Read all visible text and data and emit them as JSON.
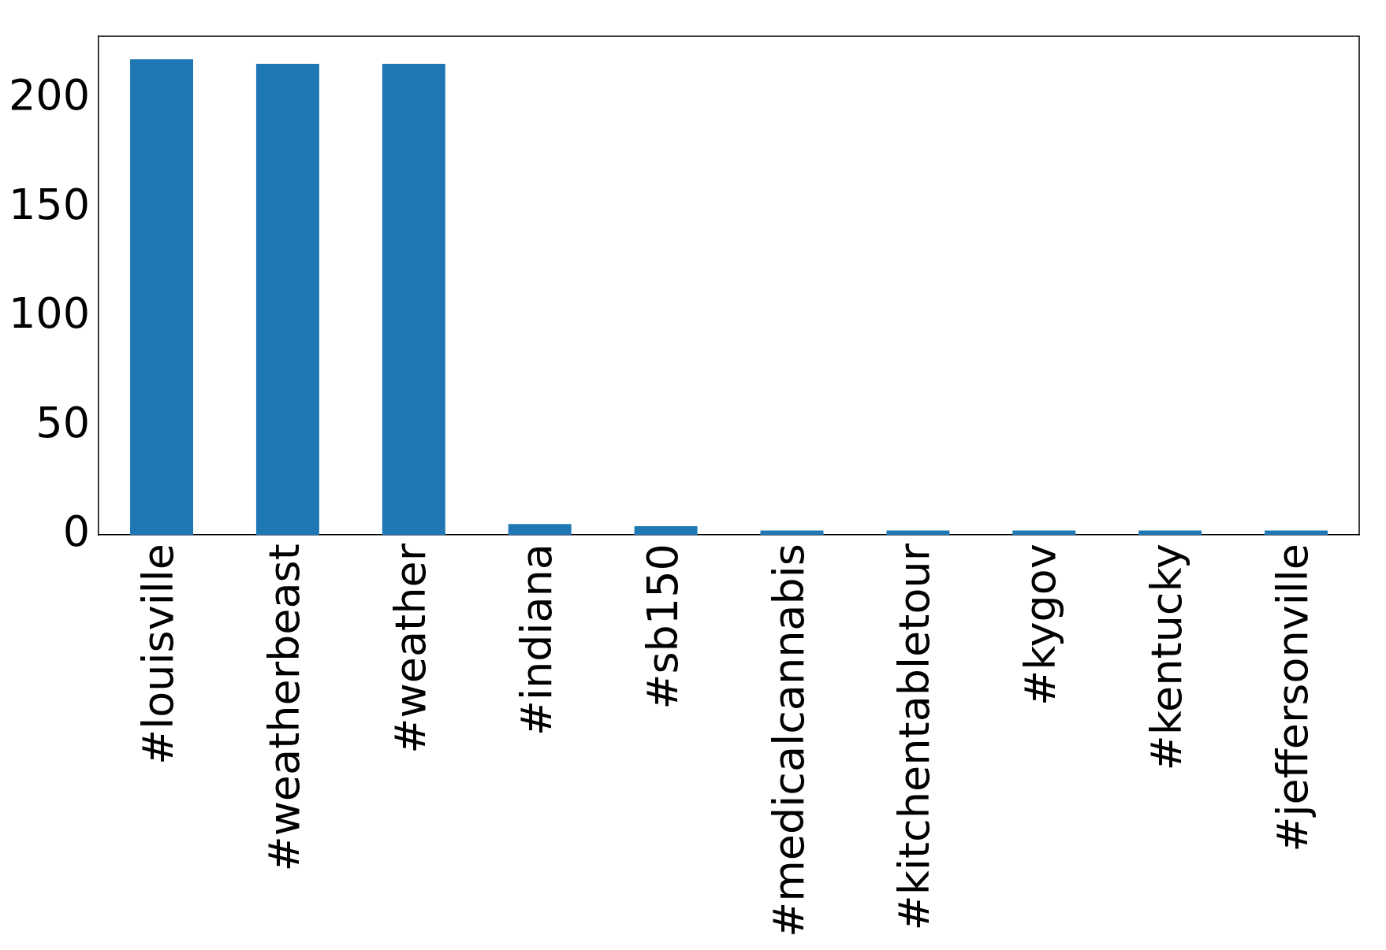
{
  "chart_data": {
    "type": "bar",
    "categories": [
      "#louisville",
      "#weatherbeast",
      "#weather",
      "#indiana",
      "#sb150",
      "#medicalcannabis",
      "#kitchentabletour",
      "#kygov",
      "#kentucky",
      "#jeffersonville"
    ],
    "values": [
      218,
      216,
      216,
      5,
      4,
      2,
      2,
      2,
      2,
      2
    ],
    "color": "#1f77b4",
    "ylim": [
      0,
      228.6
    ],
    "yticks": [
      0,
      50,
      100,
      150,
      200
    ],
    "grid": false,
    "legend": false
  }
}
